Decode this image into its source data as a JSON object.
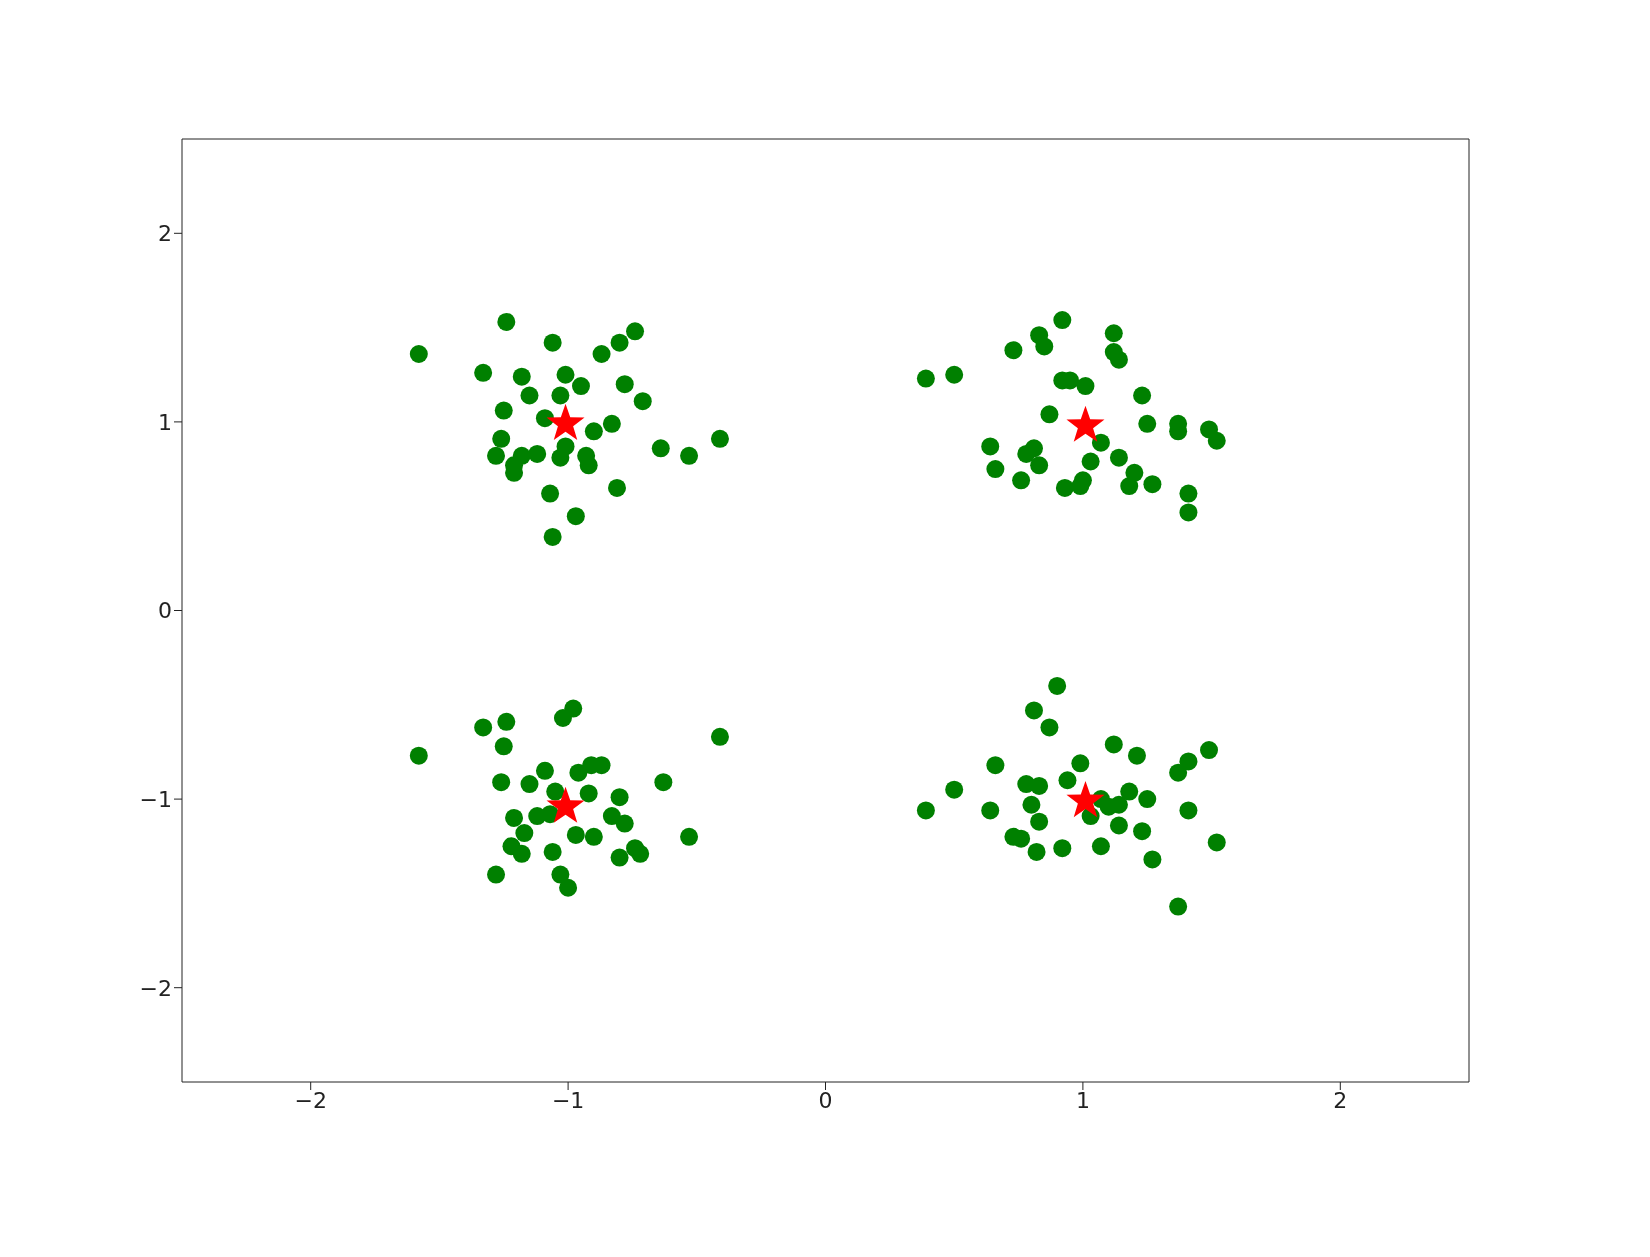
{
  "chart_data": {
    "type": "scatter",
    "xlim": [
      -2.5,
      2.5
    ],
    "ylim": [
      -2.5,
      2.5
    ],
    "xticks": [
      {
        "value": -2,
        "label": "−2"
      },
      {
        "value": -1,
        "label": "−1"
      },
      0,
      1,
      2
    ],
    "yticks": [
      {
        "value": -2,
        "label": "−2"
      },
      {
        "value": -1,
        "label": "−1"
      },
      0,
      1,
      2
    ],
    "grid": false,
    "legend": false,
    "series": [
      {
        "color": "#008000",
        "marker": "circle",
        "x": [
          -1.58,
          -1.24,
          -1.33,
          -1.06,
          -0.74,
          -0.8,
          -0.87,
          -1.18,
          -1.01,
          -1.15,
          -0.95,
          -0.78,
          -1.03,
          -0.71,
          -1.25,
          -1.09,
          -0.83,
          -0.9,
          -1.26,
          -1.01,
          -1.28,
          -1.18,
          -1.12,
          -0.93,
          -1.03,
          -1.21,
          -0.92,
          -1.21,
          -0.64,
          -0.53,
          -0.41,
          -1.07,
          -0.81,
          -0.97,
          -1.06,
          0.39,
          0.5,
          0.92,
          0.73,
          0.83,
          0.85,
          1.12,
          1.12,
          1.14,
          0.92,
          0.95,
          1.01,
          1.23,
          0.87,
          1.25,
          1.37,
          1.37,
          1.49,
          1.52,
          1.07,
          0.64,
          0.81,
          0.78,
          0.83,
          1.14,
          1.03,
          0.66,
          1.2,
          1.0,
          0.99,
          0.76,
          0.93,
          1.18,
          1.27,
          1.41,
          1.41,
          -1.58,
          -1.33,
          -1.24,
          -1.25,
          -0.98,
          -1.02,
          -0.41,
          -1.26,
          -1.09,
          -1.15,
          -0.96,
          -0.91,
          -0.87,
          -0.63,
          -1.05,
          -0.92,
          -0.8,
          -1.21,
          -1.12,
          -1.07,
          -0.83,
          -0.78,
          -1.17,
          -0.97,
          -0.9,
          -1.22,
          -1.18,
          -1.06,
          -0.74,
          -0.72,
          -0.8,
          -0.53,
          -1.28,
          -1.03,
          -1.0,
          0.9,
          0.81,
          0.87,
          0.39,
          0.5,
          0.66,
          1.12,
          1.21,
          1.49,
          1.41,
          1.37,
          0.99,
          0.94,
          0.78,
          0.83,
          1.18,
          1.07,
          1.25,
          0.8,
          1.14,
          1.1,
          0.64,
          1.41,
          1.03,
          0.83,
          1.14,
          1.23,
          0.73,
          0.76,
          0.92,
          0.82,
          1.07,
          1.52,
          1.27,
          1.37
        ],
        "values": [
          1.36,
          1.53,
          1.26,
          1.42,
          1.48,
          1.42,
          1.36,
          1.24,
          1.25,
          1.14,
          1.19,
          1.2,
          1.14,
          1.11,
          1.06,
          1.02,
          0.99,
          0.95,
          0.91,
          0.87,
          0.82,
          0.82,
          0.83,
          0.82,
          0.81,
          0.77,
          0.77,
          0.73,
          0.86,
          0.82,
          0.91,
          0.62,
          0.65,
          0.5,
          0.39,
          1.23,
          1.25,
          1.54,
          1.38,
          1.46,
          1.4,
          1.47,
          1.37,
          1.33,
          1.22,
          1.22,
          1.19,
          1.14,
          1.04,
          0.99,
          0.99,
          0.95,
          0.96,
          0.9,
          0.89,
          0.87,
          0.86,
          0.83,
          0.77,
          0.81,
          0.79,
          0.75,
          0.73,
          0.69,
          0.66,
          0.69,
          0.65,
          0.66,
          0.67,
          0.62,
          0.52,
          -0.77,
          -0.62,
          -0.59,
          -0.72,
          -0.52,
          -0.57,
          -0.67,
          -0.91,
          -0.85,
          -0.92,
          -0.86,
          -0.82,
          -0.82,
          -0.91,
          -0.96,
          -0.97,
          -0.99,
          -1.1,
          -1.09,
          -1.08,
          -1.09,
          -1.13,
          -1.18,
          -1.19,
          -1.2,
          -1.25,
          -1.29,
          -1.28,
          -1.26,
          -1.29,
          -1.31,
          -1.2,
          -1.4,
          -1.4,
          -1.47,
          -0.4,
          -0.53,
          -0.62,
          -1.06,
          -0.95,
          -0.82,
          -0.71,
          -0.77,
          -0.74,
          -0.8,
          -0.86,
          -0.81,
          -0.9,
          -0.92,
          -0.93,
          -0.96,
          -1.0,
          -1.0,
          -1.03,
          -1.03,
          -1.04,
          -1.06,
          -1.06,
          -1.09,
          -1.12,
          -1.14,
          -1.17,
          -1.2,
          -1.21,
          -1.26,
          -1.28,
          -1.25,
          -1.23,
          -1.32,
          -1.57
        ]
      },
      {
        "color": "#ff0000",
        "marker": "star",
        "x": [
          -1.01,
          1.01,
          -1.01,
          1.01
        ],
        "values": [
          0.99,
          0.98,
          -1.04,
          -1.01
        ]
      }
    ]
  }
}
